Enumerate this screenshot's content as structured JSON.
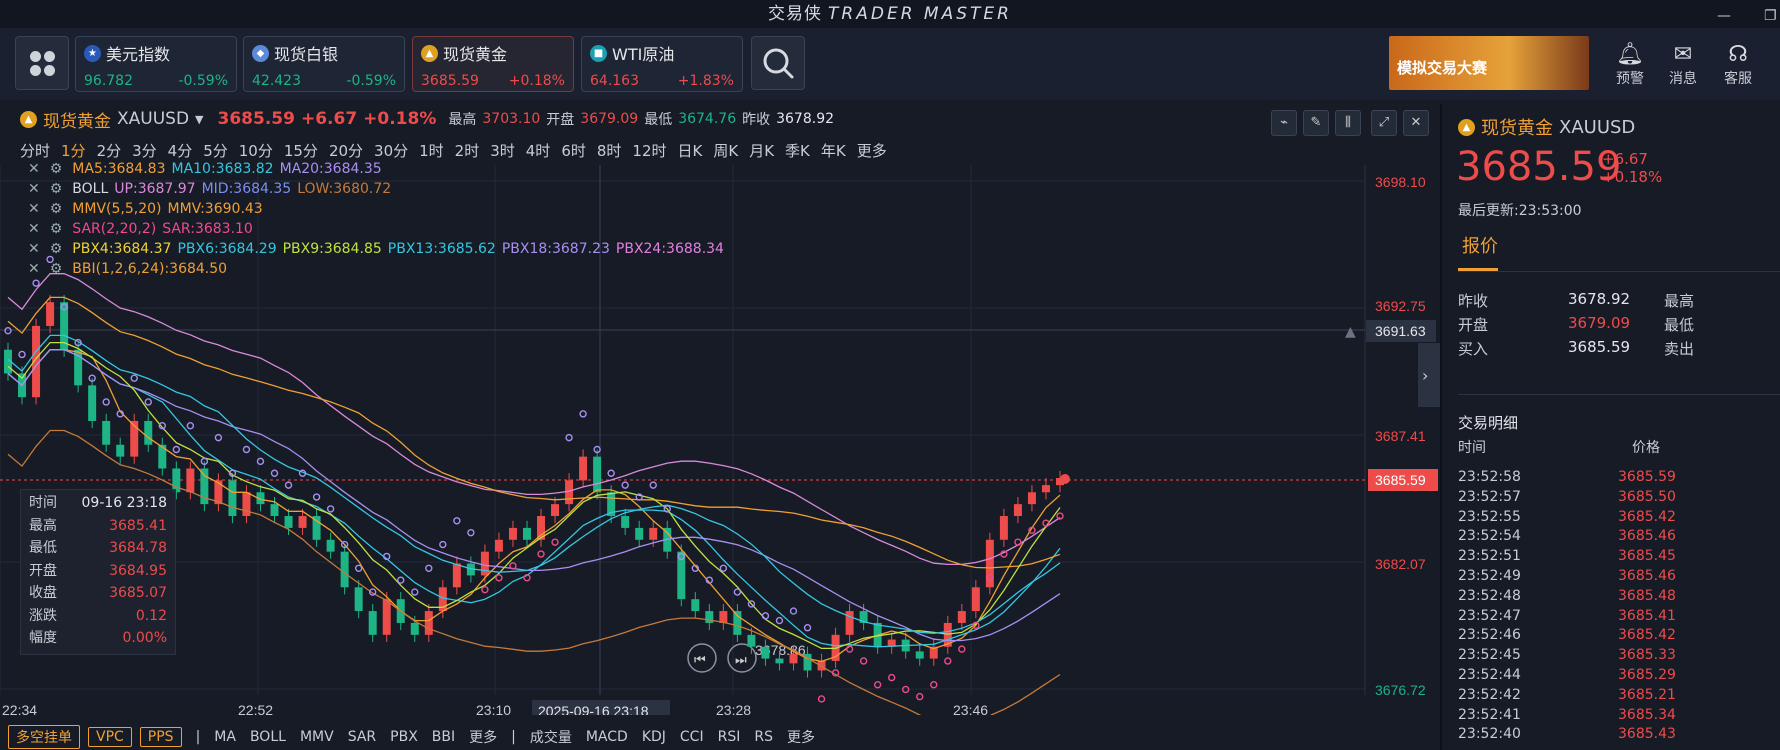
{
  "window": {
    "title": "交易侠",
    "subtitle": "TRADER MASTER"
  },
  "tickers": [
    {
      "name": "美元指数",
      "price": "96.782",
      "change": "-0.59%",
      "dir": "down"
    },
    {
      "name": "现货白银",
      "price": "42.423",
      "change": "-0.59%",
      "dir": "down"
    },
    {
      "name": "现货黄金",
      "price": "3685.59",
      "change": "+0.18%",
      "dir": "up"
    },
    {
      "name": "WTI原油",
      "price": "64.163",
      "change": "+1.83%",
      "dir": "up"
    }
  ],
  "banner": {
    "text": "模拟交易大赛"
  },
  "top_actions": {
    "alert": "预警",
    "message": "消息",
    "service": "客服"
  },
  "symbol": {
    "name": "现货黄金",
    "code": "XAUUSD",
    "price": "3685.59",
    "change": "+6.67",
    "pct": "+0.18%",
    "high_label": "最高",
    "high": "3703.10",
    "open_label": "开盘",
    "open": "3679.09",
    "low_label": "最低",
    "low": "3674.76",
    "prev_label": "昨收",
    "prev": "3678.92"
  },
  "periods": [
    "分时",
    "1分",
    "2分",
    "3分",
    "4分",
    "5分",
    "10分",
    "15分",
    "20分",
    "30分",
    "1时",
    "2时",
    "3时",
    "4时",
    "6时",
    "8时",
    "12时",
    "日K",
    "周K",
    "月K",
    "季K",
    "年K",
    "更多"
  ],
  "selected_period": "1分",
  "indicators": {
    "ma": [
      {
        "t": "MA5:3684.83",
        "c": "#f0a033"
      },
      {
        "t": "MA10:3683.82",
        "c": "#34c6e0"
      },
      {
        "t": "MA20:3684.35",
        "c": "#a88ff0"
      }
    ],
    "boll": [
      {
        "t": "BOLL",
        "c": "#d6d9df"
      },
      {
        "t": "UP:3687.97",
        "c": "#d98ad9"
      },
      {
        "t": "MID:3684.35",
        "c": "#7b8ff0"
      },
      {
        "t": "LOW:3680.72",
        "c": "#c57a3a"
      }
    ],
    "mmv": [
      {
        "t": "MMV(5,5,20)",
        "c": "#f0a033"
      },
      {
        "t": "MMV:3690.43",
        "c": "#f0a033"
      }
    ],
    "sar": [
      {
        "t": "SAR(2,20,2)",
        "c": "#ee4b8a"
      },
      {
        "t": "SAR:3683.10",
        "c": "#ee4b8a"
      }
    ],
    "pbx": [
      {
        "t": "PBX4:3684.37",
        "c": "#f0d033"
      },
      {
        "t": "PBX6:3684.29",
        "c": "#34c6e0"
      },
      {
        "t": "PBX9:3684.85",
        "c": "#c0e040"
      },
      {
        "t": "PBX13:3685.62",
        "c": "#34c6e0"
      },
      {
        "t": "PBX18:3687.23",
        "c": "#a88ff0"
      },
      {
        "t": "PBX24:3688.34",
        "c": "#e080e0"
      }
    ],
    "bbi": [
      {
        "t": "BBI(1,2,6,24):3684.50",
        "c": "#f0a033"
      }
    ]
  },
  "ohlc_tooltip": [
    {
      "k": "时间",
      "v": "09-16 23:18",
      "c": "#e4e6ea"
    },
    {
      "k": "最高",
      "v": "3685.41",
      "c": "#ee4b4b"
    },
    {
      "k": "最低",
      "v": "3684.78",
      "c": "#ee4b4b"
    },
    {
      "k": "开盘",
      "v": "3684.95",
      "c": "#ee4b4b"
    },
    {
      "k": "收盘",
      "v": "3685.07",
      "c": "#ee4b4b"
    },
    {
      "k": "涨跌",
      "v": "0.12",
      "c": "#ee4b4b"
    },
    {
      "k": "幅度",
      "v": "0.00%",
      "c": "#ee4b4b"
    }
  ],
  "y_axis": [
    {
      "v": "3698.10",
      "c": "#ee4b4b"
    },
    {
      "v": "3692.75",
      "c": "#ee4b4b"
    },
    {
      "v": "3687.41",
      "c": "#ee4b4b"
    },
    {
      "v": "3682.07",
      "c": "#ee4b4b"
    },
    {
      "v": "3676.72",
      "c": "#1db486"
    }
  ],
  "crosshair_price": "3691.63",
  "current_price_tag": "3685.59",
  "min_label": "3678.86",
  "x_axis": [
    "22:34",
    "22:52",
    "23:10",
    "23:28",
    "23:46"
  ],
  "crosshair_time": "2025-09-16 23:18",
  "bottom": {
    "pills": [
      "多空挂单",
      "VPC",
      "PPS"
    ],
    "main_ind": [
      "MA",
      "BOLL",
      "MMV",
      "SAR",
      "PBX",
      "BBI",
      "更多"
    ],
    "sub_ind": [
      "成交量",
      "MACD",
      "KDJ",
      "CCI",
      "RSI",
      "RS",
      "更多"
    ]
  },
  "panel": {
    "name": "现货黄金",
    "code": "XAUUSD",
    "price": "3685.59",
    "change": "+6.67",
    "pct": "+0.18%",
    "updated": "最后更新:23:53:00",
    "tab": "报价",
    "quotes": [
      {
        "l": "昨收",
        "v": "3678.92",
        "c": "#e4e6ea",
        "l2": "最高"
      },
      {
        "l": "开盘",
        "v": "3679.09",
        "c": "#ee4b4b",
        "l2": "最低"
      },
      {
        "l": "买入",
        "v": "3685.59",
        "c": "#e4e6ea",
        "l2": "卖出"
      }
    ],
    "deals_title": "交易明细",
    "col_time": "时间",
    "col_price": "价格",
    "deals": [
      [
        "23:52:58",
        "3685.59"
      ],
      [
        "23:52:57",
        "3685.50"
      ],
      [
        "23:52:55",
        "3685.42"
      ],
      [
        "23:52:54",
        "3685.46"
      ],
      [
        "23:52:51",
        "3685.45"
      ],
      [
        "23:52:49",
        "3685.46"
      ],
      [
        "23:52:48",
        "3685.48"
      ],
      [
        "23:52:47",
        "3685.41"
      ],
      [
        "23:52:46",
        "3685.42"
      ],
      [
        "23:52:45",
        "3685.33"
      ],
      [
        "23:52:44",
        "3685.29"
      ],
      [
        "23:52:42",
        "3685.21"
      ],
      [
        "23:52:41",
        "3685.34"
      ],
      [
        "23:52:40",
        "3685.43"
      ]
    ]
  }
}
